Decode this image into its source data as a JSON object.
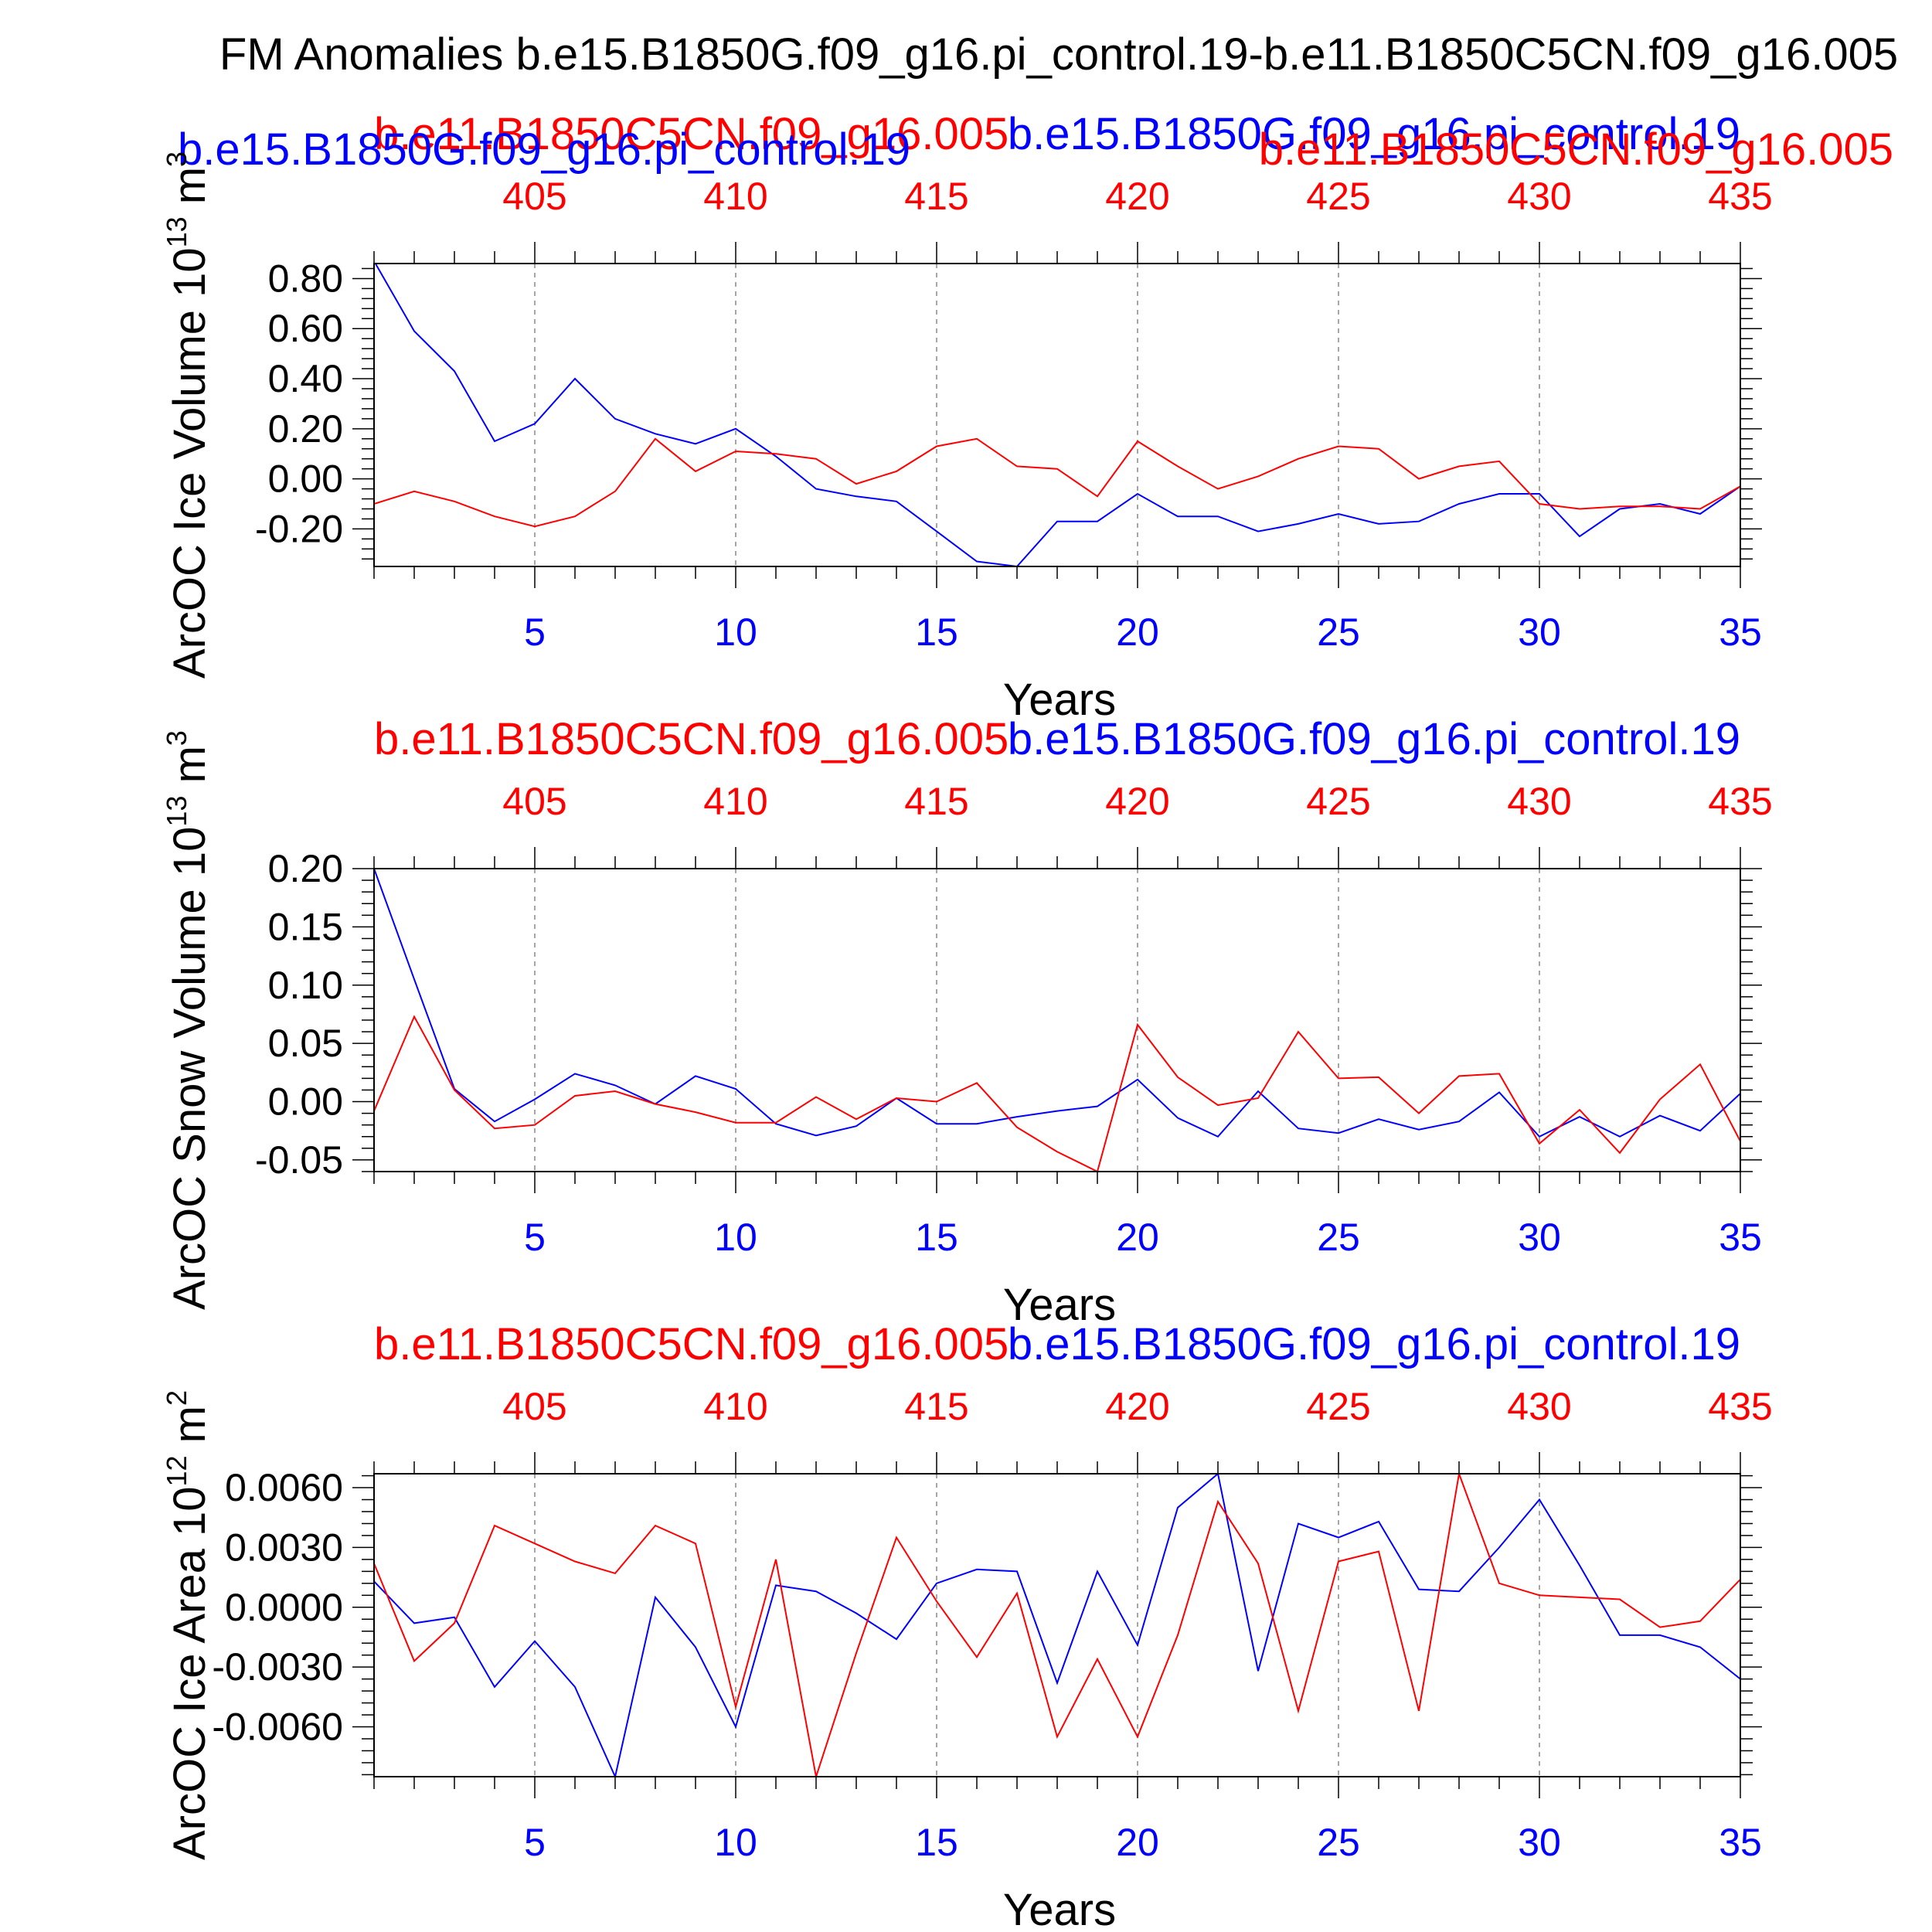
{
  "page": {
    "title": "FM Anomalies b.e15.B1850G.f09_g16.pi_control.19-b.e11.B1850C5CN.f09_g16.005"
  },
  "chart_data": [
    {
      "type": "line",
      "ylabel": "ArcOC Ice Volume 10",
      "ylabel_exp": "13",
      "ylabel_unit": "m",
      "ylabel_unit_exp": "3",
      "xlabel": "Years",
      "top_left_label": "b.e11.B1850C5CN.f09_g16.005",
      "top_right_label": "b.e15.B1850G.f09_g16.pi_control.19",
      "extra_labels": [
        "b.e15.B1850G.f09_g16.pi_control.19",
        "b.e11.B1850C5CN.f09_g16.005"
      ],
      "xlim": [
        1,
        35
      ],
      "ylim": [
        -0.35,
        0.86
      ],
      "yticks": [
        -0.2,
        0.0,
        0.2,
        0.4,
        0.6,
        0.8
      ],
      "ytick_labels": [
        "-0.20",
        "0.00",
        "0.20",
        "0.40",
        "0.60",
        "0.80"
      ],
      "xticks_bottom": [
        5,
        10,
        15,
        20,
        25,
        30,
        35
      ],
      "xtick_labels_bottom": [
        "5",
        "10",
        "15",
        "20",
        "25",
        "30",
        "35"
      ],
      "xticks_top_labels": [
        "405",
        "410",
        "415",
        "420",
        "425",
        "430",
        "435"
      ],
      "grid": "vertical dashed at labeled x ticks",
      "series": [
        {
          "color": "#0000ff",
          "x": [
            1,
            2,
            3,
            4,
            5,
            6,
            7,
            8,
            9,
            10,
            11,
            12,
            13,
            14,
            15,
            16,
            17,
            18,
            19,
            20,
            21,
            22,
            23,
            24,
            25,
            26,
            27,
            28,
            29,
            30,
            31,
            32,
            33,
            34,
            35
          ],
          "values": [
            0.87,
            0.59,
            0.43,
            0.15,
            0.22,
            0.4,
            0.24,
            0.18,
            0.14,
            0.2,
            0.09,
            -0.04,
            -0.07,
            -0.09,
            -0.21,
            -0.33,
            -0.35,
            -0.17,
            -0.17,
            -0.06,
            -0.15,
            -0.15,
            -0.21,
            -0.18,
            -0.14,
            -0.18,
            -0.17,
            -0.1,
            -0.06,
            -0.06,
            -0.23,
            -0.12,
            -0.1,
            -0.14,
            -0.03
          ]
        },
        {
          "color": "#ff0000",
          "x": [
            1,
            2,
            3,
            4,
            5,
            6,
            7,
            8,
            9,
            10,
            11,
            12,
            13,
            14,
            15,
            16,
            17,
            18,
            19,
            20,
            21,
            22,
            23,
            24,
            25,
            26,
            27,
            28,
            29,
            30,
            31,
            32,
            33,
            34,
            35
          ],
          "values": [
            -0.1,
            -0.05,
            -0.09,
            -0.15,
            -0.19,
            -0.15,
            -0.05,
            0.16,
            0.03,
            0.11,
            0.1,
            0.08,
            -0.02,
            0.03,
            0.13,
            0.16,
            0.05,
            0.04,
            -0.07,
            0.15,
            0.05,
            -0.04,
            0.01,
            0.08,
            0.13,
            0.12,
            0.0,
            0.05,
            0.07,
            -0.1,
            -0.12,
            -0.11,
            -0.11,
            -0.12,
            -0.03
          ]
        }
      ]
    },
    {
      "type": "line",
      "ylabel": "ArcOC Snow Volume 10",
      "ylabel_exp": "13",
      "ylabel_unit": "m",
      "ylabel_unit_exp": "3",
      "xlabel": "Years",
      "top_left_label": "b.e11.B1850C5CN.f09_g16.005",
      "top_right_label": "b.e15.B1850G.f09_g16.pi_control.19",
      "extra_labels": [],
      "xlim": [
        1,
        35
      ],
      "ylim": [
        -0.06,
        0.2
      ],
      "yticks": [
        -0.05,
        0.0,
        0.05,
        0.1,
        0.15,
        0.2
      ],
      "ytick_labels": [
        "-0.05",
        "0.00",
        "0.05",
        "0.10",
        "0.15",
        "0.20"
      ],
      "xticks_bottom": [
        5,
        10,
        15,
        20,
        25,
        30,
        35
      ],
      "xtick_labels_bottom": [
        "5",
        "10",
        "15",
        "20",
        "25",
        "30",
        "35"
      ],
      "xticks_top_labels": [
        "405",
        "410",
        "415",
        "420",
        "425",
        "430",
        "435"
      ],
      "grid": "vertical dashed at labeled x ticks",
      "series": [
        {
          "color": "#0000ff",
          "x": [
            1,
            2,
            3,
            4,
            5,
            6,
            7,
            8,
            9,
            10,
            11,
            12,
            13,
            14,
            15,
            16,
            17,
            18,
            19,
            20,
            21,
            22,
            23,
            24,
            25,
            26,
            27,
            28,
            29,
            30,
            31,
            32,
            33,
            34,
            35
          ],
          "values": [
            0.2,
            0.105,
            0.011,
            -0.017,
            0.002,
            0.024,
            0.014,
            -0.002,
            0.022,
            0.011,
            -0.019,
            -0.029,
            -0.021,
            0.003,
            -0.019,
            -0.019,
            -0.013,
            -0.008,
            -0.004,
            0.019,
            -0.014,
            -0.03,
            0.009,
            -0.023,
            -0.027,
            -0.015,
            -0.024,
            -0.017,
            0.008,
            -0.03,
            -0.013,
            -0.03,
            -0.012,
            -0.025,
            0.007
          ]
        },
        {
          "color": "#ff0000",
          "x": [
            1,
            2,
            3,
            4,
            5,
            6,
            7,
            8,
            9,
            10,
            11,
            12,
            13,
            14,
            15,
            16,
            17,
            18,
            19,
            20,
            21,
            22,
            23,
            24,
            25,
            26,
            27,
            28,
            29,
            30,
            31,
            32,
            33,
            34,
            35
          ],
          "values": [
            -0.008,
            0.073,
            0.01,
            -0.023,
            -0.02,
            0.005,
            0.009,
            -0.002,
            -0.009,
            -0.018,
            -0.018,
            0.004,
            -0.015,
            0.003,
            0.0,
            0.016,
            -0.022,
            -0.043,
            -0.06,
            0.066,
            0.021,
            -0.003,
            0.003,
            0.06,
            0.02,
            0.021,
            -0.01,
            0.022,
            0.024,
            -0.036,
            -0.007,
            -0.044,
            0.002,
            0.032,
            -0.034
          ]
        }
      ]
    },
    {
      "type": "line",
      "ylabel": "ArcOC Ice Area 10",
      "ylabel_exp": "12",
      "ylabel_unit": "m",
      "ylabel_unit_exp": "2",
      "xlabel": "Years",
      "top_left_label": "b.e11.B1850C5CN.f09_g16.005",
      "top_right_label": "b.e15.B1850G.f09_g16.pi_control.19",
      "extra_labels": [],
      "xlim": [
        1,
        35
      ],
      "ylim": [
        -0.0085,
        0.0067
      ],
      "yticks": [
        -0.006,
        -0.003,
        0.0,
        0.003,
        0.006
      ],
      "ytick_labels": [
        "-0.0060",
        "-0.0030",
        "0.0000",
        "0.0030",
        "0.0060"
      ],
      "xticks_bottom": [
        5,
        10,
        15,
        20,
        25,
        30,
        35
      ],
      "xtick_labels_bottom": [
        "5",
        "10",
        "15",
        "20",
        "25",
        "30",
        "35"
      ],
      "xticks_top_labels": [
        "405",
        "410",
        "415",
        "420",
        "425",
        "430",
        "435"
      ],
      "grid": "vertical dashed at labeled x ticks",
      "series": [
        {
          "color": "#0000ff",
          "x": [
            1,
            2,
            3,
            4,
            5,
            6,
            7,
            8,
            9,
            10,
            11,
            12,
            13,
            14,
            15,
            16,
            17,
            18,
            19,
            20,
            21,
            22,
            23,
            24,
            25,
            26,
            27,
            28,
            29,
            30,
            31,
            32,
            33,
            34,
            35
          ],
          "values": [
            0.0013,
            -0.0008,
            -0.0005,
            -0.004,
            -0.0017,
            -0.004,
            -0.0085,
            0.0005,
            -0.002,
            -0.006,
            0.0011,
            0.0008,
            -0.0003,
            -0.0016,
            0.0012,
            0.0019,
            0.0018,
            -0.0038,
            0.0018,
            -0.0019,
            0.005,
            0.0067,
            -0.0032,
            0.0042,
            0.0035,
            0.0043,
            0.0009,
            0.0008,
            0.003,
            0.0054,
            0.0021,
            -0.0014,
            -0.0014,
            -0.002,
            -0.0036
          ]
        },
        {
          "color": "#ff0000",
          "x": [
            1,
            2,
            3,
            4,
            5,
            6,
            7,
            8,
            9,
            10,
            11,
            12,
            13,
            14,
            15,
            16,
            17,
            18,
            19,
            20,
            21,
            22,
            23,
            24,
            25,
            26,
            27,
            28,
            29,
            30,
            31,
            32,
            33,
            34,
            35
          ],
          "values": [
            0.0022,
            -0.0027,
            -0.0008,
            0.0041,
            0.0032,
            0.0023,
            0.0017,
            0.0041,
            0.0032,
            -0.005,
            0.0024,
            -0.0085,
            -0.0023,
            0.0035,
            0.0003,
            -0.0025,
            0.0007,
            -0.0065,
            -0.0026,
            -0.0065,
            -0.0014,
            0.0053,
            0.0022,
            -0.0052,
            0.0023,
            0.0028,
            -0.0052,
            0.0067,
            0.0012,
            0.0006,
            0.0005,
            0.0004,
            -0.001,
            -0.0007,
            0.0014
          ]
        }
      ]
    }
  ]
}
